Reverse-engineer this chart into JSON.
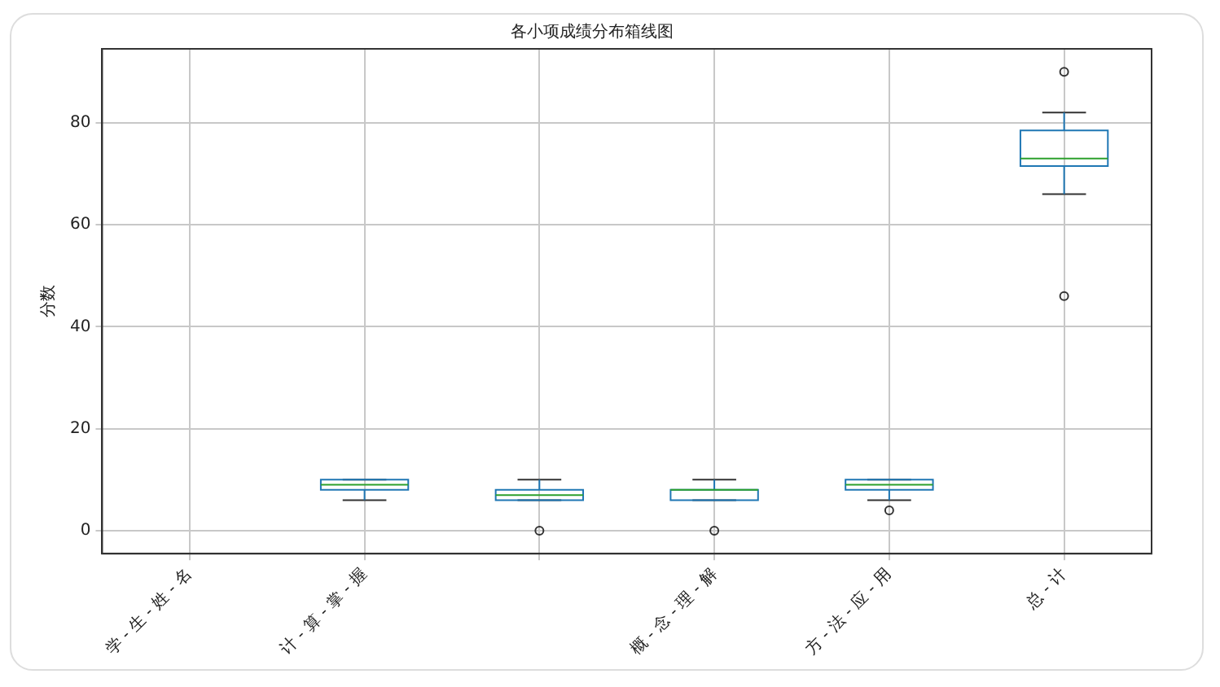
{
  "chart_data": {
    "type": "box",
    "title": "各小项成绩分布箱线图",
    "ylabel": "分数",
    "categories": [
      "学 - 生 - 姓 - 名",
      "计 - 算 - 掌 - 握",
      null,
      "概 - 念 - 理 - 解",
      "方 - 法 - 应 - 用",
      "总 - 计"
    ],
    "series": [
      {
        "color": "#1f77b4",
        "boxes": [
          null,
          {
            "low": 6,
            "q1": 8,
            "median": 9,
            "q3": 10,
            "high": 10
          },
          {
            "low": 6,
            "q1": 6,
            "median": 7,
            "q3": 8,
            "high": 10,
            "outliers": [
              0
            ]
          },
          {
            "low": 6,
            "q1": 6,
            "median": 8,
            "q3": 8,
            "high": 10,
            "outliers": [
              0
            ]
          },
          {
            "low": 6,
            "q1": 8,
            "median": 9,
            "q3": 10,
            "high": 10,
            "outliers": [
              4
            ]
          },
          {
            "low": 66,
            "q1": 71.5,
            "median": 73,
            "q3": 78.5,
            "high": 82,
            "outliers": [
              90,
              46
            ]
          }
        ]
      }
    ],
    "ylim": [
      -4.5,
      94.5
    ],
    "yticks": [
      0,
      20,
      40,
      60,
      80
    ],
    "grid": true
  }
}
